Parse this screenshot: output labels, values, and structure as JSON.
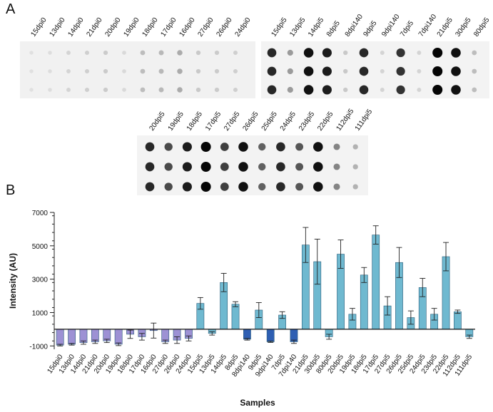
{
  "figure": {
    "panel_a_letter": "A",
    "panel_b_letter": "B"
  },
  "blots": [
    {
      "labels": [
        "15dpi0",
        "13dpi0",
        "14dpi0",
        "21dpi0",
        "20dpi0",
        "19dpi0",
        "18dpi0",
        "17dpi0",
        "16dpi0",
        "27dpi0",
        "26dpi0",
        "24dpi0"
      ],
      "intensity": [
        0.05,
        0.06,
        0.1,
        0.12,
        0.14,
        0.08,
        0.2,
        0.22,
        0.28,
        0.15,
        0.14,
        0.12
      ]
    },
    {
      "labels": [
        "15dpi5",
        "13dpi5",
        "14dpi5",
        "8dpi5",
        "8dpi140",
        "9dpi5",
        "9dpi140",
        "7dpi5",
        "7dpi140",
        "21dpi5",
        "30dpi5",
        "80dpi5"
      ],
      "intensity": [
        0.85,
        0.35,
        0.95,
        0.9,
        0.15,
        0.85,
        0.1,
        0.8,
        0.1,
        1.0,
        0.95,
        0.2
      ]
    },
    {
      "labels": [
        "20dpi5",
        "19dpi5",
        "18dpi5",
        "17dpi5",
        "27dpi5",
        "26dpi5",
        "25dpi5",
        "24dpi5",
        "23dpi5",
        "22dpi5",
        "112dpi5",
        "111dpi5"
      ],
      "intensity": [
        0.85,
        0.7,
        0.9,
        1.0,
        0.75,
        0.95,
        0.6,
        0.85,
        0.65,
        0.95,
        0.45,
        0.25
      ]
    }
  ],
  "chart_data": {
    "type": "bar",
    "xlabel": "Samples",
    "ylabel": "Intensity (AU)",
    "ylim": [
      -1200,
      7000
    ],
    "yticks": [
      -1000,
      1000,
      3000,
      5000,
      7000
    ],
    "categories": [
      "15dpi0",
      "13dpi0",
      "14dpi0",
      "21dpi0",
      "20dpi0",
      "19dpi0",
      "18dpi0",
      "17dpi0",
      "16dpi0",
      "27dpi0",
      "26dpi0",
      "24dpi0",
      "15dpi5",
      "13dpi5",
      "14dpi5",
      "8dpi5",
      "8dpi140",
      "9dpi5",
      "9dpi140",
      "7dpi5",
      "7dpi140",
      "21dpi5",
      "30dpi5",
      "80dpi5",
      "20dpi5",
      "19dpi5",
      "18dpi5",
      "17dpi5",
      "27dpi5",
      "26dpi5",
      "25dpi5",
      "24dpi5",
      "23dpi5",
      "22dpi5",
      "112dpi5",
      "111dpi5"
    ],
    "values": [
      -950,
      -900,
      -800,
      -750,
      -700,
      -900,
      -300,
      -450,
      -80,
      -750,
      -650,
      -550,
      1550,
      -250,
      2800,
      1500,
      -600,
      1150,
      -750,
      850,
      -750,
      5050,
      4050,
      -450,
      4500,
      900,
      3250,
      5650,
      1400,
      4000,
      700,
      2500,
      900,
      4350,
      1050,
      -450
    ],
    "errors": [
      50,
      50,
      100,
      100,
      100,
      80,
      250,
      200,
      450,
      100,
      200,
      150,
      350,
      100,
      550,
      150,
      50,
      450,
      40,
      200,
      100,
      1050,
      1350,
      150,
      850,
      350,
      450,
      550,
      550,
      900,
      400,
      550,
      350,
      850,
      100,
      100
    ],
    "group": [
      "d0",
      "d0",
      "d0",
      "d0",
      "d0",
      "d0",
      "d0",
      "d0",
      "d0",
      "d0",
      "d0",
      "d0",
      "d5",
      "d5",
      "d5",
      "d5",
      "d140",
      "d5",
      "d140",
      "d5",
      "d140",
      "d5",
      "d5",
      "d5",
      "d5",
      "d5",
      "d5",
      "d5",
      "d5",
      "d5",
      "d5",
      "d5",
      "d5",
      "d5",
      "d5",
      "d5"
    ],
    "colors": {
      "d0": "#9d91d4",
      "d5": "#6fb9d0",
      "d140": "#2e5fb3"
    }
  }
}
